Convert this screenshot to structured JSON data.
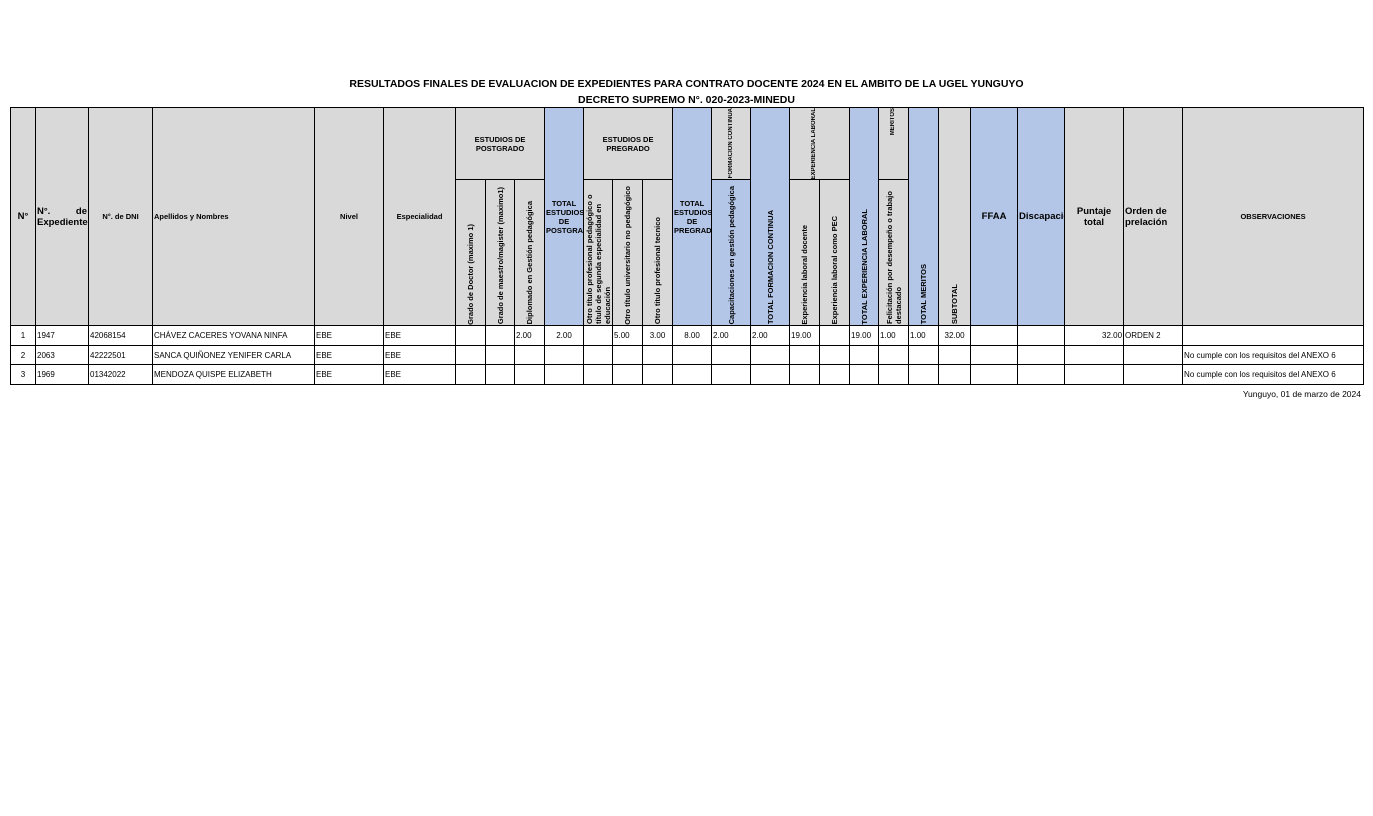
{
  "header": {
    "title": "RESULTADOS FINALES DE EVALUACION DE EXPEDIENTES PARA CONTRATO DOCENTE 2024 EN EL AMBITO DE LA UGEL YUNGUYO",
    "subtitle": "DECRETO SUPREMO N°. 020-2023-MINEDU"
  },
  "table": {
    "groups": {
      "postgrado": "ESTUDIOS DE POSTGRADO",
      "pregrado": "ESTUDIOS DE PREGRADO",
      "formacion": "FORMACION CONTINUA",
      "experiencia": "EXPERIENCIA LABORAL",
      "meritos": "MERITOS"
    },
    "columns": {
      "n": "N°",
      "expediente": "N°. de Expediente",
      "dni": "N°. de DNI",
      "nombre": "Apellidos y Nombres",
      "nivel": "Nivel",
      "especialidad": "Especialidad",
      "doctor": "Grado de Doctor (maximo 1)",
      "maestro": "Grado de maestro/magister (maximo1)",
      "diplomado": "Diplomado en Gestión pedagógica",
      "total_postgrado": "TOTAL ESTUDIOS DE POSTGRADO",
      "segunda": "Otro título profesional pedagógico o título de segunda especialidad en educación",
      "universitario": "Otro título universitario no pedagógico",
      "tecnico": "Otro titulo profesional tecnico",
      "total_pregrado": "TOTAL ESTUDIOS DE PREGRADO",
      "capacitaciones": "Capacitaciones en gestión pedagógica",
      "total_formacion": "TOTAL FORMACION CONTINUA",
      "exp_docente": "Experiencia laboral docente",
      "exp_pec": "Experiencia laboral como PEC",
      "total_experiencia": "TOTAL EXPERIENCIA LABORAL",
      "felicitacion": "Felicitación por desempeño o trabajo destacado",
      "total_meritos": "TOTAL MERITOS",
      "subtotal": "SUBTOTAL",
      "ffaa": "FFAA",
      "discapacidad": "Discapacidad",
      "puntaje": "Puntaje total",
      "orden": "Orden de prelación",
      "observaciones": "OBSERVACIONES"
    },
    "rows": [
      {
        "n": "1",
        "expediente": "1947",
        "dni": "42068154",
        "nombre": "CHÁVEZ CACERES YOVANA  NINFA",
        "nivel": "EBE",
        "especialidad": "EBE",
        "diplomado": "2.00",
        "total_postgrado": "2.00",
        "universitario": "5.00",
        "tecnico": "3.00",
        "total_pregrado": "8.00",
        "capacitaciones": "2.00",
        "total_formacion": "2.00",
        "exp_docente": "19.00",
        "total_experiencia": "19.00",
        "felicitacion": "1.00",
        "total_meritos": "1.00",
        "subtotal": "32.00",
        "puntaje": "32.00",
        "orden": "ORDEN 2"
      },
      {
        "n": "2",
        "expediente": "2063",
        "dni": "42222501",
        "nombre": "SANCA QUIÑONEZ YENIFER CARLA",
        "nivel": "EBE",
        "especialidad": "EBE",
        "observaciones": "No cumple con los requisitos del ANEXO 6"
      },
      {
        "n": "3",
        "expediente": "1969",
        "dni": "01342022",
        "nombre": "MENDOZA QUISPE ELIZABETH",
        "nivel": "EBE",
        "especialidad": "EBE",
        "observaciones": "No cumple con los requisitos del ANEXO 6"
      }
    ]
  },
  "footer": {
    "place_date": "Yunguyo, 01 de marzo de 2024"
  }
}
